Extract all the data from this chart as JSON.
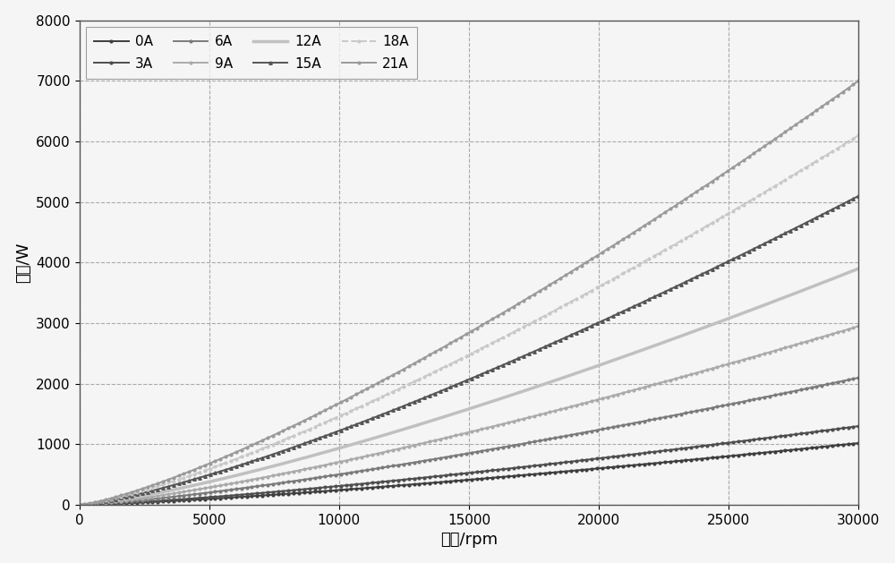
{
  "series": [
    {
      "label": "0A",
      "end_val": 1020,
      "color": "#3d3d3d",
      "linestyle": "-",
      "marker": "o",
      "markersize": 2.0,
      "linewidth": 1.4,
      "markevery": 1
    },
    {
      "label": "3A",
      "end_val": 1300,
      "color": "#4d4d4d",
      "linestyle": "-",
      "marker": "o",
      "markersize": 2.0,
      "linewidth": 1.4,
      "markevery": 1
    },
    {
      "label": "6A",
      "end_val": 2100,
      "color": "#7a7a7a",
      "linestyle": "-",
      "marker": "o",
      "markersize": 2.0,
      "linewidth": 1.4,
      "markevery": 1
    },
    {
      "label": "9A",
      "end_val": 2950,
      "color": "#aaaaaa",
      "linestyle": "-",
      "marker": "o",
      "markersize": 2.0,
      "linewidth": 1.4,
      "markevery": 1
    },
    {
      "label": "12A",
      "end_val": 3900,
      "color": "#c0c0c0",
      "linestyle": "-",
      "marker": "None",
      "markersize": 2.0,
      "linewidth": 2.5,
      "markevery": 1
    },
    {
      "label": "15A",
      "end_val": 5100,
      "color": "#555555",
      "linestyle": "-",
      "marker": "^",
      "markersize": 2.5,
      "linewidth": 1.4,
      "markevery": 1
    },
    {
      "label": "18A",
      "end_val": 6100,
      "color": "#c8c8c8",
      "linestyle": "--",
      "marker": "o",
      "markersize": 2.0,
      "linewidth": 1.4,
      "markevery": 1
    },
    {
      "label": "21A",
      "end_val": 7000,
      "color": "#9a9a9a",
      "linestyle": "-",
      "marker": "o",
      "markersize": 2.0,
      "linewidth": 1.4,
      "markevery": 1
    }
  ],
  "x_max": 30000,
  "n_points": 150,
  "x_ticks": [
    0,
    5000,
    10000,
    15000,
    20000,
    25000,
    30000
  ],
  "y_max": 8000,
  "y_ticks": [
    0,
    1000,
    2000,
    3000,
    4000,
    5000,
    6000,
    7000,
    8000
  ],
  "xlabel": "转速/rpm",
  "ylabel": "损耗/W",
  "grid_color": "#aaaaaa",
  "grid_linestyle": "--",
  "background_color": "#f5f5f5",
  "legend_ncol": 4,
  "power_exponent": 1.3
}
